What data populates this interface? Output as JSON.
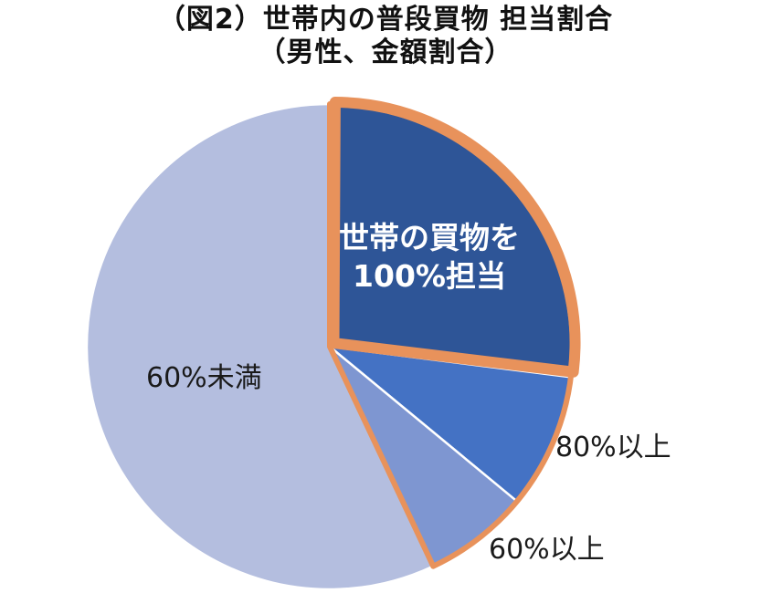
{
  "title_line1": "（図2）世帯内の普段買物 担当割合",
  "title_line2": "（男性、金額割合）",
  "chart_data": {
    "type": "pie",
    "title": "（図2）世帯内の普段買物 担当割合（男性、金額割合）",
    "start_angle_deg": 0,
    "direction": "clockwise",
    "slices": [
      {
        "label": "世帯の買物を100%担当",
        "label_lines": [
          "世帯の買物を",
          "100%担当"
        ],
        "value": 27,
        "color": "#2E5597",
        "highlight": true
      },
      {
        "label": "80%以上",
        "value": 9,
        "color": "#4472C4",
        "highlight": true
      },
      {
        "label": "60%以上",
        "value": 7,
        "color": "#7E96D1",
        "highlight": true
      },
      {
        "label": "60%未満",
        "value": 57,
        "color": "#B4BEDF",
        "highlight": false
      }
    ],
    "highlight_outline_color": "#E8925B"
  }
}
